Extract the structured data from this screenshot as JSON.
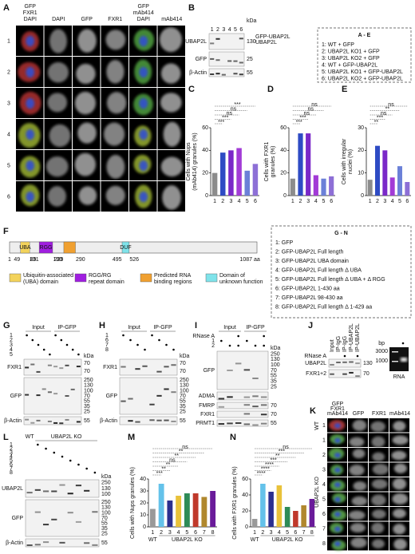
{
  "panel_a": {
    "label": "A",
    "merge_1": [
      "GFP",
      "FXR1",
      "DAPI"
    ],
    "channels": [
      "DAPI",
      "GFP",
      "FXR1"
    ],
    "merge_2": [
      "GFP",
      "mAb414",
      "DAPI"
    ],
    "channel_4": "mAb414",
    "rows": [
      "1",
      "2",
      "3",
      "4",
      "5",
      "6"
    ]
  },
  "panel_b": {
    "label": "B",
    "unit": "kDa",
    "lanes": [
      "1",
      "2",
      "3",
      "4",
      "5",
      "6"
    ],
    "blots": [
      {
        "name": "UBAP2L",
        "kda": [
          "130"
        ]
      },
      {
        "name": "GFP",
        "kda": [
          "25"
        ]
      },
      {
        "name": "β-Actin",
        "kda": [
          "55"
        ]
      }
    ],
    "band_labels": [
      "GFP-UBAP2L",
      "UBAP2L"
    ]
  },
  "legend_ae": {
    "title": "A - E",
    "items": [
      "1: WT + GFP",
      "2: UBAP2L KO1 + GFP",
      "3: UBAP2L KO2 + GFP",
      "4: WT + GFP-UBAP2L",
      "5: UBAP2L KO1 + GFP-UBAP2L",
      "6: UBAP2L KO2 + GFP-UBAP2L"
    ]
  },
  "chart_data": [
    {
      "type": "bar",
      "panel_label": "C",
      "y_label": [
        "Cells with Nups",
        "(mAb414) granules (%)"
      ],
      "categories": [
        "1",
        "2",
        "3",
        "4",
        "5",
        "6"
      ],
      "values": [
        20,
        38,
        40,
        42,
        22,
        28
      ],
      "colors": [
        "#8c8c8c",
        "#2e4bc4",
        "#7a28c8",
        "#a23bd6",
        "#6b80d8",
        "#8d6fd6"
      ],
      "ylim": [
        0,
        60
      ],
      "yticks": [
        0,
        20,
        40,
        60
      ],
      "significance": [
        "***",
        "***",
        "ns",
        "ns",
        "***"
      ]
    },
    {
      "type": "bar",
      "panel_label": "D",
      "y_label": [
        "Cells with FXR1",
        "granules (%)"
      ],
      "categories": [
        "1",
        "2",
        "3",
        "4",
        "5",
        "6"
      ],
      "values": [
        15,
        55,
        55,
        18,
        15,
        17
      ],
      "colors": [
        "#8c8c8c",
        "#2e4bc4",
        "#7a28c8",
        "#a23bd6",
        "#6b80d8",
        "#8d6fd6"
      ],
      "ylim": [
        0,
        60
      ],
      "yticks": [
        0,
        20,
        40,
        60
      ],
      "significance": [
        "***",
        "***",
        "ns",
        "ns",
        "ns"
      ]
    },
    {
      "type": "bar",
      "panel_label": "E",
      "y_label": [
        "Cells with irregular",
        "nuclei (%)"
      ],
      "categories": [
        "1",
        "2",
        "3",
        "4",
        "5",
        "6"
      ],
      "values": [
        7,
        22,
        20,
        8,
        13,
        6
      ],
      "colors": [
        "#8c8c8c",
        "#2e4bc4",
        "#7a28c8",
        "#a23bd6",
        "#6b80d8",
        "#8d6fd6"
      ],
      "ylim": [
        0,
        30
      ],
      "yticks": [
        0,
        10,
        20,
        30
      ],
      "significance": [
        "**",
        "***",
        "ns",
        "**",
        "ns"
      ]
    },
    {
      "type": "bar",
      "panel_label": "M",
      "y_label": [
        "Cells with Nups granules (%)"
      ],
      "categories": [
        "1",
        "2",
        "3",
        "4",
        "5",
        "6",
        "7",
        "8"
      ],
      "values": [
        15,
        36,
        22,
        26,
        28,
        28,
        25,
        30
      ],
      "colors": [
        "#999999",
        "#64c2ea",
        "#2b2f8f",
        "#e9c23a",
        "#2e8b57",
        "#c0392b",
        "#b0872d",
        "#6a1b9a"
      ],
      "ylim": [
        0,
        40
      ],
      "yticks": [
        0,
        10,
        20,
        30,
        40
      ],
      "significance": [
        "***",
        "**",
        "**",
        "ns",
        "**",
        "**",
        "ns"
      ],
      "group_labels": [
        "WT",
        "UBAP2L KO"
      ]
    },
    {
      "type": "bar",
      "panel_label": "N",
      "y_label": [
        "Cells with FXR1 granules (%)"
      ],
      "categories": [
        "1",
        "2",
        "3",
        "4",
        "5",
        "6",
        "7",
        "8"
      ],
      "values": [
        10,
        54,
        44,
        52,
        25,
        20,
        27,
        35
      ],
      "colors": [
        "#999999",
        "#64c2ea",
        "#2b2f8f",
        "#e9c23a",
        "#2e8b57",
        "#c0392b",
        "#b0872d",
        "#6a1b9a"
      ],
      "ylim": [
        0,
        60
      ],
      "yticks": [
        0,
        20,
        40,
        60
      ],
      "significance": [
        "****",
        "****",
        "****",
        "***",
        "**",
        "***",
        "ns"
      ],
      "group_labels": [
        "WT",
        "UBAP2L KO"
      ]
    }
  ],
  "panel_f": {
    "label": "F",
    "start": 1,
    "length": 1087,
    "unit": "aa",
    "domains": [
      {
        "name": "UBA",
        "start": 49,
        "end": 89,
        "color": "#f3d35b"
      },
      {
        "name": "RGG",
        "start": 131,
        "end": 190,
        "color": "#a01ee0"
      },
      {
        "start": 239,
        "end": 290,
        "color": "#f0a030"
      },
      {
        "name": "DUF",
        "start": 495,
        "end": 526,
        "color": "#7fe3ea"
      }
    ],
    "legend": [
      {
        "lines": [
          "Ubiquitin-associated",
          "(UBA) domain"
        ],
        "color": "#f3d35b"
      },
      {
        "lines": [
          "RGG/RG",
          "repeat domain"
        ],
        "color": "#a01ee0"
      },
      {
        "lines": [
          "Predicted RNA",
          "binding regions"
        ],
        "color": "#f0a030"
      },
      {
        "lines": [
          "Domain of",
          "unknown function"
        ],
        "color": "#7fe3ea"
      }
    ]
  },
  "legend_gn": {
    "title": "G - N",
    "items": [
      "1: GFP",
      "2: GFP-UBAP2L Full length",
      "3: GFP-UBAP2L UBA domain",
      "4: GFP-UBAP2L Full length Δ UBA",
      "5: GFP-UBAP2L Full length Δ UBA + Δ RGG",
      "6: GFP-UBAP2L 1-430 aa",
      "7: GFP-UBAP2L 98-430 aa",
      "8: GFP-UBAP2L Full length Δ 1-429 aa"
    ]
  },
  "panel_g": {
    "label": "G",
    "unit": "kDa",
    "headers": [
      "Input",
      "IP-GFP"
    ],
    "rows": [
      "1",
      "2",
      "3",
      "4",
      "5"
    ],
    "blots": [
      {
        "name": "FXR1",
        "kda": [
          "70",
          "70"
        ]
      },
      {
        "name": "GFP",
        "kda": [
          "250",
          "130",
          "100",
          "70",
          "55",
          "35",
          "25"
        ]
      },
      {
        "name": "β-Actin",
        "kda": [
          "55"
        ]
      }
    ]
  },
  "panel_h": {
    "label": "H",
    "unit": "kDa",
    "headers": [
      "Input",
      "IP-GFP"
    ],
    "rows": [
      "1",
      "6",
      "7",
      "8"
    ],
    "blots": [
      {
        "name": "FXR1",
        "kda": [
          "70",
          "70"
        ]
      },
      {
        "name": "GFP",
        "kda": [
          "250",
          "130",
          "100",
          "70",
          "55",
          "35",
          "25"
        ]
      },
      {
        "name": "β-Actin",
        "kda": [
          "55"
        ]
      }
    ]
  },
  "panel_i": {
    "label": "I",
    "unit": "kDa",
    "treatment": "RNase A",
    "headers": [
      "Input",
      "IP-GFP"
    ],
    "rows": [
      "1",
      "2"
    ],
    "blots": [
      {
        "name": "GFP",
        "kda": [
          "250",
          "130",
          "100",
          "70",
          "55",
          "35",
          "25"
        ]
      },
      {
        "name": "ADMA",
        "kda": []
      },
      {
        "name": "FMRP",
        "kda": [
          "70"
        ]
      },
      {
        "name": "FXR1",
        "kda": [
          "70"
        ]
      },
      {
        "name": "PRMT1",
        "kda": [
          "55"
        ]
      }
    ]
  },
  "panel_j": {
    "label": "J",
    "treatment": "RNase A",
    "lanes": [
      "Input",
      "IP-IgG",
      "IP-IgG",
      "IP-UBAP2L",
      "IP-UBAP2L"
    ],
    "blots": [
      {
        "name": "UBAP2L",
        "kda": [
          "130"
        ]
      },
      {
        "name": "FXR1+2",
        "kda": [
          "70"
        ]
      }
    ],
    "gel": {
      "unit": "bp",
      "markers": [
        "3000",
        "1000"
      ],
      "name": "RNA"
    }
  },
  "panel_k": {
    "label": "K",
    "merge": [
      "GFP",
      "FXR1",
      "mAb414"
    ],
    "channels": [
      "GFP",
      "FXR1",
      "mAb414"
    ],
    "rows": [
      "1",
      "1",
      "2",
      "3",
      "4",
      "5",
      "6",
      "7",
      "8"
    ],
    "group_labels": [
      "WT",
      "UBAP2L KO"
    ]
  },
  "panel_l": {
    "label": "L",
    "unit": "kDa",
    "groups": [
      "WT",
      "UBAP2L KO"
    ],
    "rows": [
      "1",
      "2",
      "3",
      "4",
      "5",
      "6",
      "7",
      "8"
    ],
    "blots": [
      {
        "name": "UBAP2L",
        "kda": [
          "250",
          "130",
          "100"
        ]
      },
      {
        "name": "GFP",
        "kda": [
          "250",
          "130",
          "100",
          "70",
          "55",
          "35",
          "25"
        ]
      },
      {
        "name": "β-Actin",
        "kda": [
          "55"
        ]
      }
    ]
  }
}
